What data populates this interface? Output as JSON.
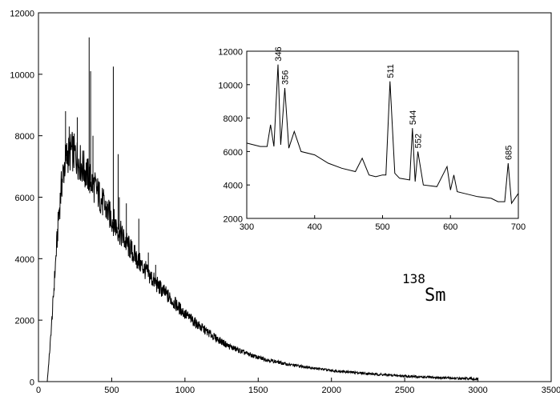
{
  "chart_data": [
    {
      "type": "line",
      "title": "",
      "xlabel": "",
      "ylabel": "",
      "xlim": [
        0,
        3500
      ],
      "ylim": [
        0,
        12000
      ],
      "xticks": [
        0,
        500,
        1000,
        1500,
        2000,
        2500,
        3000,
        3500
      ],
      "yticks": [
        0,
        2000,
        4000,
        6000,
        8000,
        10000,
        12000
      ],
      "grid": false,
      "annotation": {
        "base": "Sm",
        "superscript": "138"
      },
      "series": [
        {
          "x": [
            0,
            60,
            80,
            100,
            120,
            140,
            160,
            180,
            200,
            230,
            260,
            300,
            350,
            400,
            450,
            500,
            600,
            700,
            800,
            900,
            1000,
            1100,
            1200,
            1300,
            1400,
            1500,
            1700,
            2000,
            2300,
            2600,
            3000
          ],
          "values": [
            0,
            0,
            1200,
            2600,
            4100,
            5500,
            6500,
            7100,
            7400,
            7500,
            7300,
            7000,
            6600,
            6200,
            5700,
            5300,
            4500,
            3800,
            3200,
            2700,
            2200,
            1800,
            1450,
            1150,
            950,
            780,
            560,
            360,
            240,
            150,
            80
          ]
        }
      ],
      "peaks": [
        {
          "x": 185,
          "y": 8800
        },
        {
          "x": 210,
          "y": 8300
        },
        {
          "x": 265,
          "y": 8600
        },
        {
          "x": 346,
          "y": 11200
        },
        {
          "x": 356,
          "y": 10100
        },
        {
          "x": 372,
          "y": 8000
        },
        {
          "x": 511,
          "y": 10250
        },
        {
          "x": 544,
          "y": 7400
        },
        {
          "x": 552,
          "y": 6000
        },
        {
          "x": 600,
          "y": 5800
        },
        {
          "x": 685,
          "y": 5300
        },
        {
          "x": 750,
          "y": 4200
        },
        {
          "x": 800,
          "y": 3800
        }
      ]
    },
    {
      "type": "line",
      "title": "",
      "xlabel": "",
      "ylabel": "",
      "xlim": [
        300,
        700
      ],
      "ylim": [
        2000,
        12000
      ],
      "xticks": [
        300,
        400,
        500,
        600,
        700
      ],
      "yticks": [
        2000,
        4000,
        6000,
        8000,
        10000,
        12000
      ],
      "grid": false,
      "series": [
        {
          "x": [
            300,
            320,
            330,
            335,
            340,
            346,
            350,
            356,
            362,
            370,
            380,
            400,
            420,
            440,
            460,
            470,
            480,
            490,
            500,
            505,
            511,
            518,
            525,
            540,
            544,
            548,
            552,
            560,
            580,
            595,
            600,
            605,
            610,
            620,
            640,
            660,
            670,
            680,
            685,
            690,
            700
          ],
          "values": [
            6500,
            6300,
            6300,
            7600,
            6300,
            11200,
            6400,
            9800,
            6200,
            7200,
            6000,
            5800,
            5300,
            5000,
            4800,
            5600,
            4600,
            4500,
            4600,
            4600,
            10200,
            4700,
            4400,
            4300,
            7400,
            4200,
            6000,
            4000,
            3900,
            5100,
            3700,
            4600,
            3600,
            3500,
            3300,
            3200,
            3000,
            3000,
            5300,
            2900,
            3500
          ]
        }
      ],
      "peak_labels": [
        {
          "x": 346,
          "y": 11200,
          "text": "346"
        },
        {
          "x": 356,
          "y": 9800,
          "text": "356"
        },
        {
          "x": 511,
          "y": 10200,
          "text": "511"
        },
        {
          "x": 544,
          "y": 7400,
          "text": "544"
        },
        {
          "x": 552,
          "y": 6000,
          "text": "552"
        },
        {
          "x": 685,
          "y": 5300,
          "text": "685"
        }
      ]
    }
  ]
}
